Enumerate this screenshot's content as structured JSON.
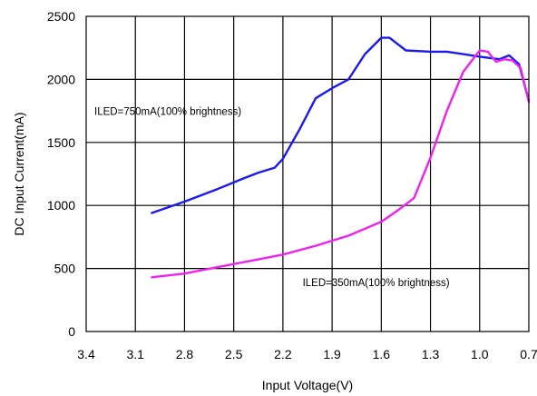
{
  "chart_data": {
    "type": "line",
    "title": "",
    "xlabel": "Input Voltage(V)",
    "ylabel": "DC Input Current(mA)",
    "x_reversed": true,
    "xlim": [
      3.4,
      0.7
    ],
    "ylim": [
      0,
      2500
    ],
    "x_ticks": [
      "3.4",
      "3.1",
      "2.8",
      "2.5",
      "2.2",
      "1.9",
      "1.6",
      "1.3",
      "1.0",
      "0.7"
    ],
    "y_ticks": [
      "0",
      "500",
      "1000",
      "1500",
      "2000",
      "2500"
    ],
    "grid": true,
    "series": [
      {
        "color": "#1a1aee",
        "points": [
          [
            3.0,
            940
          ],
          [
            2.8,
            1030
          ],
          [
            2.6,
            1130
          ],
          [
            2.45,
            1210
          ],
          [
            2.35,
            1260
          ],
          [
            2.25,
            1300
          ],
          [
            2.2,
            1370
          ],
          [
            2.1,
            1600
          ],
          [
            2.0,
            1850
          ],
          [
            1.9,
            1930
          ],
          [
            1.8,
            2000
          ],
          [
            1.7,
            2200
          ],
          [
            1.6,
            2330
          ],
          [
            1.55,
            2330
          ],
          [
            1.45,
            2230
          ],
          [
            1.3,
            2220
          ],
          [
            1.2,
            2220
          ],
          [
            1.1,
            2200
          ],
          [
            1.0,
            2180
          ],
          [
            0.88,
            2160
          ],
          [
            0.82,
            2190
          ],
          [
            0.76,
            2120
          ],
          [
            0.7,
            1830
          ]
        ]
      },
      {
        "color": "#ee22ee",
        "points": [
          [
            3.0,
            430
          ],
          [
            2.8,
            460
          ],
          [
            2.6,
            510
          ],
          [
            2.4,
            560
          ],
          [
            2.2,
            610
          ],
          [
            2.0,
            680
          ],
          [
            1.8,
            760
          ],
          [
            1.6,
            870
          ],
          [
            1.5,
            960
          ],
          [
            1.4,
            1060
          ],
          [
            1.3,
            1380
          ],
          [
            1.2,
            1750
          ],
          [
            1.1,
            2060
          ],
          [
            1.0,
            2230
          ],
          [
            0.95,
            2220
          ],
          [
            0.9,
            2140
          ],
          [
            0.85,
            2160
          ],
          [
            0.8,
            2150
          ],
          [
            0.75,
            2090
          ],
          [
            0.7,
            1820
          ]
        ]
      }
    ],
    "annotations": [
      {
        "text": "ILED=750mA(100% brightness)",
        "x": 3.35,
        "y": 1720
      },
      {
        "text": "ILED=350mA(100% brightness)",
        "x": 2.08,
        "y": 360
      }
    ]
  }
}
